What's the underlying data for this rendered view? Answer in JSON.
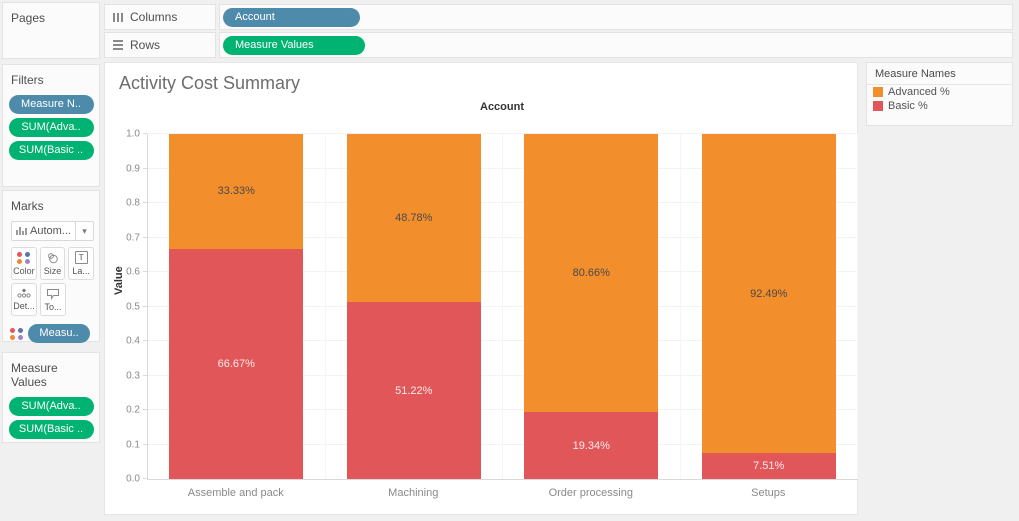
{
  "colors": {
    "advanced": "#F28E2B",
    "basic": "#E15759",
    "dimension_pill": "#4E8BAB",
    "measure_pill": "#00B373",
    "app_background": "#F0F0F0"
  },
  "pages": {
    "title": "Pages"
  },
  "shelves": {
    "columns_label": "Columns",
    "rows_label": "Rows",
    "columns_pill": "Account",
    "rows_pill": "Measure Values"
  },
  "filters": {
    "title": "Filters",
    "pills": [
      {
        "label": "Measure N..",
        "type": "dimension"
      },
      {
        "label": "SUM(Adva..",
        "type": "measure"
      },
      {
        "label": "SUM(Basic ..",
        "type": "measure"
      }
    ]
  },
  "marks": {
    "title": "Marks",
    "mark_type": "Autom...",
    "dropdown_caret": "▾",
    "buttons": [
      {
        "label": "Color",
        "icon": "color-dots-icon"
      },
      {
        "label": "Size",
        "icon": "size-circles-icon"
      },
      {
        "label": "La...",
        "icon": "label-text-icon"
      },
      {
        "label": "Det...",
        "icon": "detail-dots-icon"
      },
      {
        "label": "To...",
        "icon": "tooltip-bubble-icon"
      }
    ],
    "pill": "Measu.."
  },
  "measure_values": {
    "title": "Measure Values",
    "pills": [
      "SUM(Adva..",
      "SUM(Basic .."
    ]
  },
  "legend": {
    "title": "Measure Names",
    "items": [
      {
        "label": "Advanced %",
        "color": "#F28E2B"
      },
      {
        "label": "Basic %",
        "color": "#E15759"
      }
    ]
  },
  "chart_data": {
    "type": "bar",
    "stacked": true,
    "title": "Activity Cost Summary",
    "column_header": "Account",
    "ylabel": "Value",
    "categories": [
      "Assemble and pack",
      "Machining",
      "Order processing",
      "Setups"
    ],
    "series": [
      {
        "name": "Basic %",
        "color": "#E15759",
        "label_color": "rgba(255,255,255,0.88)",
        "values": [
          66.67,
          51.22,
          19.34,
          7.51
        ],
        "labels": [
          "66.67%",
          "51.22%",
          "19.34%",
          "7.51%"
        ]
      },
      {
        "name": "Advanced %",
        "color": "#F28E2B",
        "label_color": "#4a4a4a",
        "values": [
          33.33,
          48.78,
          80.66,
          92.49
        ],
        "labels": [
          "33.33%",
          "48.78%",
          "80.66%",
          "92.49%"
        ]
      }
    ],
    "ylim": [
      0,
      1.0
    ],
    "yticks": [
      0,
      0.1,
      0.2,
      0.3,
      0.4,
      0.5,
      0.6,
      0.7,
      0.8,
      0.9,
      1.0
    ],
    "ytick_labels": [
      "0.0",
      "0.1",
      "0.2",
      "0.3",
      "0.4",
      "0.5",
      "0.6",
      "0.7",
      "0.8",
      "0.9",
      "1.0"
    ],
    "grid": "horizontal",
    "legend_position": "right"
  }
}
